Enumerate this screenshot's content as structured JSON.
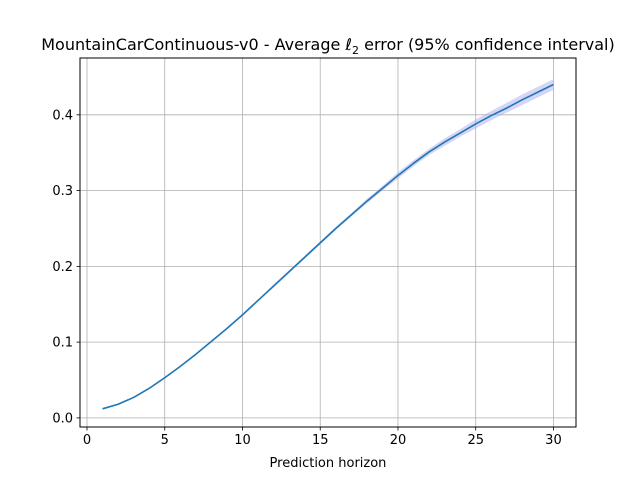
{
  "chart_data": {
    "type": "line",
    "title_main": "MountainCarContinuous-v0 - Average ",
    "title_symbol": "ℓ",
    "title_subscript": "2",
    "title_rest": " error (95% confidence interval)",
    "xlabel": "Prediction horizon",
    "ylabel": "",
    "xlim": [
      -0.45,
      31.45
    ],
    "ylim": [
      -0.012,
      0.475
    ],
    "xticks": [
      0,
      5,
      10,
      15,
      20,
      25,
      30
    ],
    "xtick_labels": [
      "0",
      "5",
      "10",
      "15",
      "20",
      "25",
      "30"
    ],
    "yticks": [
      0.0,
      0.1,
      0.2,
      0.3,
      0.4
    ],
    "ytick_labels": [
      "0.0",
      "0.1",
      "0.2",
      "0.3",
      "0.4"
    ],
    "grid": true,
    "line_color": "#1f77b4",
    "band_color": "#b3b3f0",
    "series": [
      {
        "x": [
          1,
          2,
          3,
          4,
          5,
          6,
          7,
          8,
          9,
          10,
          11,
          12,
          13,
          14,
          15,
          16,
          17,
          18,
          19,
          20,
          21,
          22,
          23,
          24,
          25,
          26,
          27,
          28,
          29,
          30
        ],
        "y": [
          0.012,
          0.018,
          0.027,
          0.039,
          0.053,
          0.068,
          0.084,
          0.101,
          0.118,
          0.136,
          0.155,
          0.174,
          0.193,
          0.212,
          0.231,
          0.25,
          0.268,
          0.286,
          0.303,
          0.32,
          0.336,
          0.351,
          0.364,
          0.376,
          0.388,
          0.399,
          0.409,
          0.42,
          0.43,
          0.44
        ],
        "ci_lower": [
          0.011,
          0.017,
          0.026,
          0.038,
          0.052,
          0.067,
          0.083,
          0.1,
          0.117,
          0.135,
          0.154,
          0.172,
          0.191,
          0.21,
          0.229,
          0.248,
          0.266,
          0.283,
          0.3,
          0.316,
          0.332,
          0.347,
          0.359,
          0.371,
          0.382,
          0.393,
          0.403,
          0.413,
          0.423,
          0.433
        ],
        "ci_upper": [
          0.013,
          0.019,
          0.028,
          0.04,
          0.054,
          0.069,
          0.085,
          0.102,
          0.119,
          0.137,
          0.156,
          0.176,
          0.195,
          0.214,
          0.233,
          0.252,
          0.27,
          0.289,
          0.306,
          0.324,
          0.34,
          0.355,
          0.369,
          0.381,
          0.394,
          0.405,
          0.416,
          0.427,
          0.437,
          0.447
        ]
      }
    ]
  }
}
